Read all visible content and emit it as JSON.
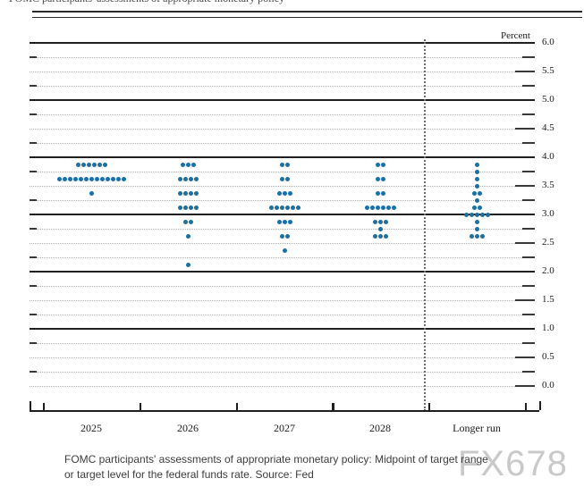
{
  "header": {
    "fragment": "FOMC participants' assessments of appropriate monetary policy"
  },
  "watermark": "FX678",
  "caption": {
    "line1": "FOMC participants' assessments of appropriate monetary policy: Midpoint of target range",
    "line2": "or target level for the federal funds rate. Source: Fed"
  },
  "chart_data": {
    "type": "scatter",
    "subtype": "fomc-dot-plot",
    "title": "FOMC participants' assessments of appropriate monetary policy: Midpoint of target range or target level for the federal funds rate",
    "source": "Fed",
    "ylabel": "Percent",
    "ylim": [
      0.0,
      6.0
    ],
    "ytick_step": 0.5,
    "grid_step": 0.25,
    "yticks": [
      "6.0",
      "5.5",
      "5.0",
      "4.5",
      "4.0",
      "3.5",
      "3.0",
      "2.5",
      "2.0",
      "1.5",
      "1.0",
      "0.5",
      "0.0"
    ],
    "grid": true,
    "dot_color": "#1a6fa5",
    "categories": [
      "2025",
      "2026",
      "2027",
      "2028",
      "Longer run"
    ],
    "separator_before_category": "Longer run",
    "series": [
      {
        "name": "2025",
        "dots": [
          {
            "rate": 3.875,
            "count": 6
          },
          {
            "rate": 3.625,
            "count": 13
          },
          {
            "rate": 3.375,
            "count": 1
          }
        ]
      },
      {
        "name": "2026",
        "dots": [
          {
            "rate": 3.875,
            "count": 3
          },
          {
            "rate": 3.625,
            "count": 4
          },
          {
            "rate": 3.375,
            "count": 4
          },
          {
            "rate": 3.125,
            "count": 4
          },
          {
            "rate": 2.875,
            "count": 2
          },
          {
            "rate": 2.625,
            "count": 1
          },
          {
            "rate": 2.125,
            "count": 1
          }
        ]
      },
      {
        "name": "2027",
        "dots": [
          {
            "rate": 3.875,
            "count": 2
          },
          {
            "rate": 3.625,
            "count": 2
          },
          {
            "rate": 3.375,
            "count": 3
          },
          {
            "rate": 3.125,
            "count": 6
          },
          {
            "rate": 2.875,
            "count": 3
          },
          {
            "rate": 2.625,
            "count": 2
          },
          {
            "rate": 2.375,
            "count": 1
          }
        ]
      },
      {
        "name": "2028",
        "dots": [
          {
            "rate": 3.875,
            "count": 2
          },
          {
            "rate": 3.625,
            "count": 2
          },
          {
            "rate": 3.375,
            "count": 2
          },
          {
            "rate": 3.125,
            "count": 6
          },
          {
            "rate": 2.875,
            "count": 3
          },
          {
            "rate": 2.75,
            "count": 1
          },
          {
            "rate": 2.625,
            "count": 3
          }
        ]
      },
      {
        "name": "Longer run",
        "dots": [
          {
            "rate": 3.875,
            "count": 1
          },
          {
            "rate": 3.75,
            "count": 1
          },
          {
            "rate": 3.625,
            "count": 1
          },
          {
            "rate": 3.5,
            "count": 1
          },
          {
            "rate": 3.375,
            "count": 2
          },
          {
            "rate": 3.25,
            "count": 1
          },
          {
            "rate": 3.125,
            "count": 2
          },
          {
            "rate": 3.0,
            "count": 5
          },
          {
            "rate": 2.875,
            "count": 1
          },
          {
            "rate": 2.75,
            "count": 1
          },
          {
            "rate": 2.625,
            "count": 3
          }
        ]
      }
    ]
  }
}
